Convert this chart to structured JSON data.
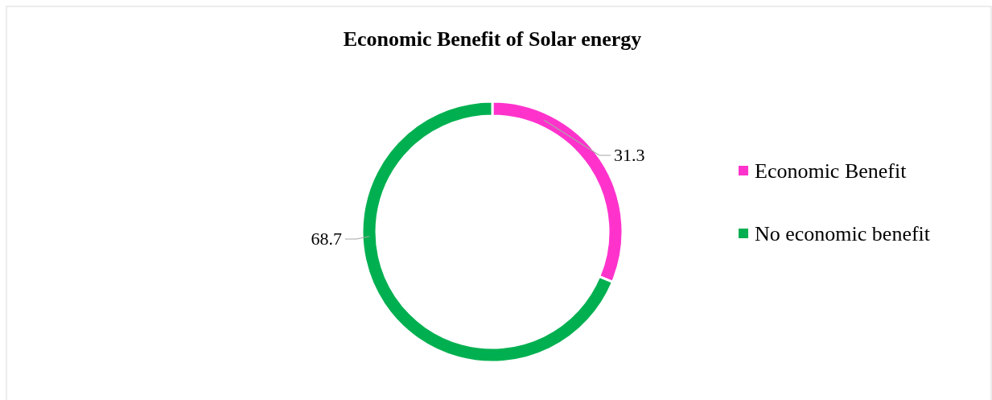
{
  "chart_data": {
    "type": "donut",
    "title": "Economic Benefit of Solar energy",
    "categories": [
      "Economic Benefit",
      "No economic benefit"
    ],
    "values": [
      31.3,
      68.7
    ],
    "colors": [
      "#ff33cc",
      "#00b050"
    ],
    "data_labels": true,
    "legend": "right"
  }
}
